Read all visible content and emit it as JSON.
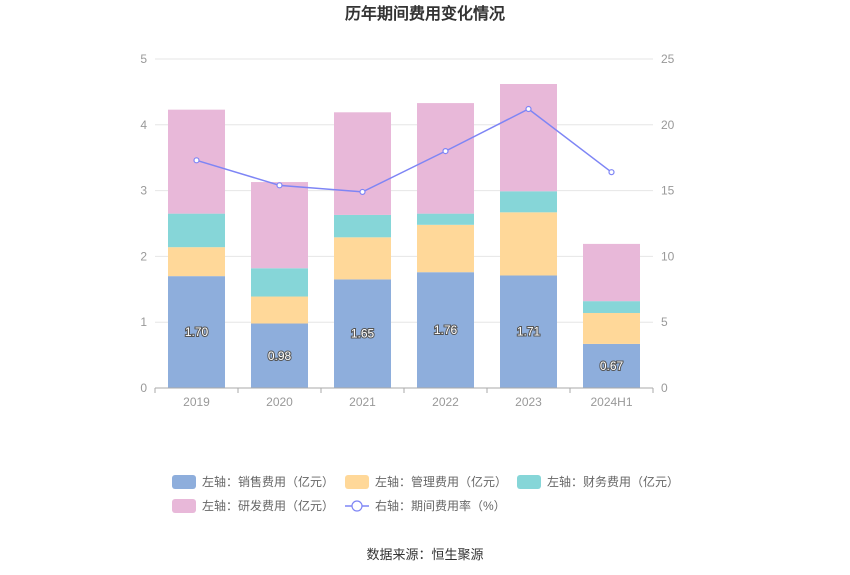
{
  "chart_data": {
    "type": "bar",
    "title": "历年期间费用变化情况",
    "categories": [
      "2019",
      "2020",
      "2021",
      "2022",
      "2023",
      "2024H1"
    ],
    "left_axis": {
      "ticks": [
        "0",
        "1",
        "2",
        "3",
        "4",
        "5"
      ],
      "ylim": [
        0,
        5
      ]
    },
    "right_axis": {
      "ticks": [
        "0",
        "5",
        "10",
        "15",
        "20",
        "25"
      ],
      "ylim": [
        0,
        25
      ]
    },
    "series": [
      {
        "name": "左轴：销售费用（亿元）",
        "axis": "left",
        "kind": "bar",
        "color": "#8eaedc",
        "values": [
          1.7,
          0.98,
          1.65,
          1.76,
          1.71,
          0.67
        ],
        "labels": [
          "1.70",
          "0.98",
          "1.65",
          "1.76",
          "1.71",
          "0.67"
        ]
      },
      {
        "name": "左轴：管理费用（亿元）",
        "axis": "left",
        "kind": "bar",
        "color": "#ffd899",
        "values": [
          0.44,
          0.41,
          0.64,
          0.72,
          0.96,
          0.47
        ]
      },
      {
        "name": "左轴：财务费用（亿元）",
        "axis": "left",
        "kind": "bar",
        "color": "#86d6d8",
        "values": [
          0.51,
          0.43,
          0.34,
          0.17,
          0.32,
          0.18
        ]
      },
      {
        "name": "左轴：研发费用（亿元）",
        "axis": "left",
        "kind": "bar",
        "color": "#e8b8d9",
        "values": [
          1.58,
          1.31,
          1.56,
          1.68,
          1.63,
          0.87
        ]
      },
      {
        "name": "右轴：期间费用率（%）",
        "axis": "right",
        "kind": "line",
        "color": "#7e85f5",
        "values": [
          17.3,
          15.4,
          14.9,
          18.0,
          21.2,
          16.4
        ]
      }
    ],
    "legend_position": "bottom",
    "grid": true
  },
  "source": "数据来源：恒生聚源"
}
